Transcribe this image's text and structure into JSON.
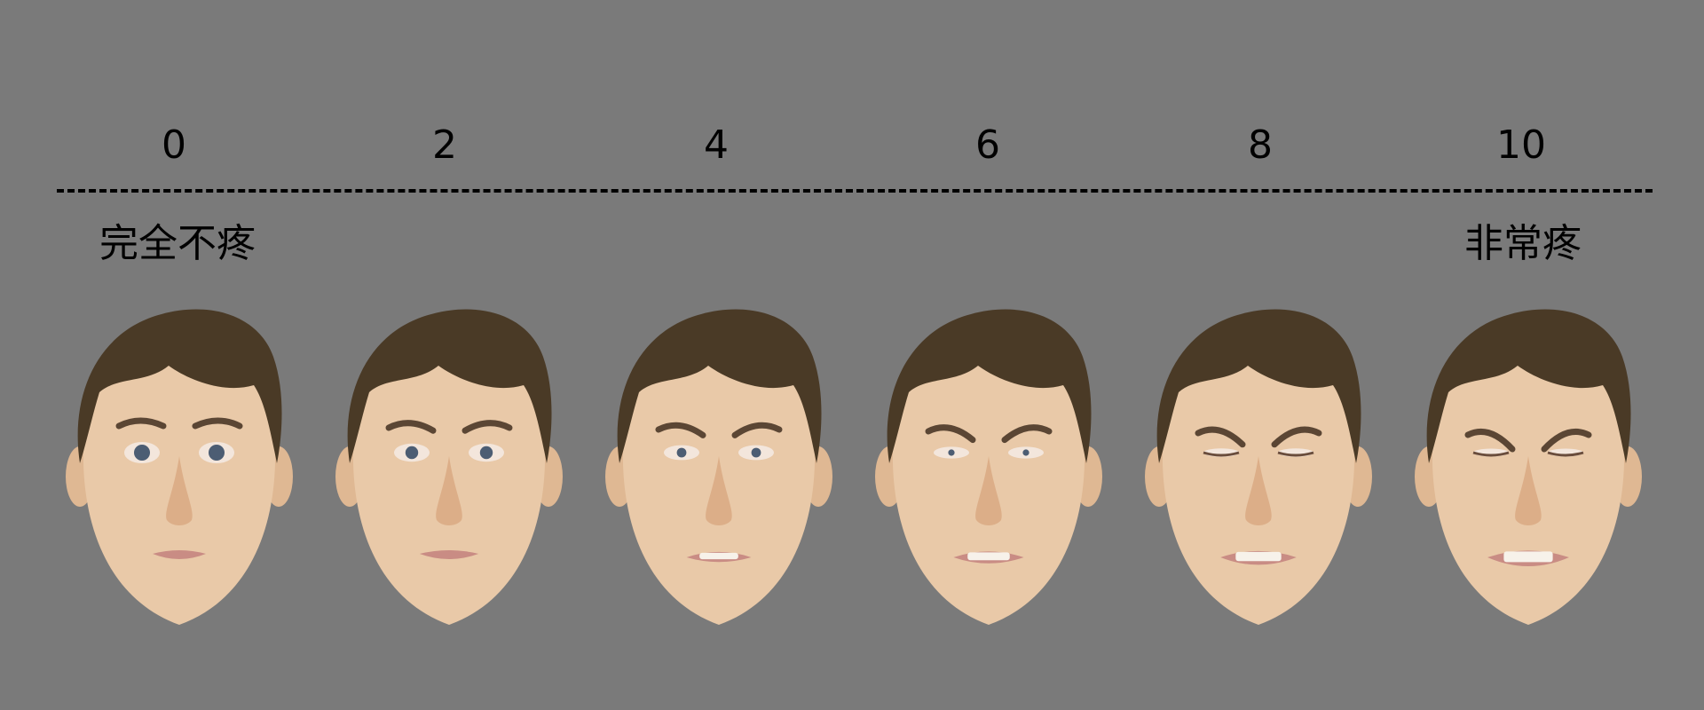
{
  "scale": {
    "scores": [
      "0",
      "2",
      "4",
      "6",
      "8",
      "10"
    ],
    "anchor_left": "完全不疼",
    "anchor_right": "非常疼"
  },
  "faces": [
    {
      "score": 0,
      "expression": "neutral"
    },
    {
      "score": 2,
      "expression": "slight-discomfort"
    },
    {
      "score": 4,
      "expression": "mild-pain"
    },
    {
      "score": 6,
      "expression": "moderate-pain"
    },
    {
      "score": 8,
      "expression": "severe-pain"
    },
    {
      "score": 10,
      "expression": "worst-pain"
    }
  ],
  "colors": {
    "background": "#7a7a7a",
    "text": "#000000",
    "skin": "#e9c9a8",
    "hair": "#4a3a26",
    "lips": "#c98c84"
  }
}
